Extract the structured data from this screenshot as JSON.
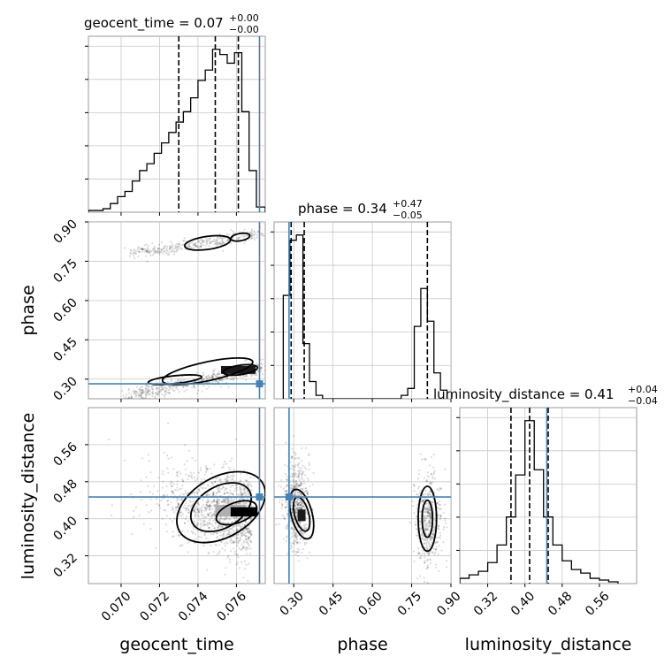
{
  "chart_data": {
    "type": "corner",
    "parameters": [
      "geocent_time",
      "phase",
      "luminosity_distance"
    ],
    "ranges": {
      "geocent_time": [
        0.0683,
        0.0775
      ],
      "phase": [
        0.225,
        0.9
      ],
      "luminosity_distance": [
        0.26,
        0.64
      ]
    },
    "truths": {
      "geocent_time": 0.0772,
      "phase": 0.282,
      "luminosity_distance": 0.447
    },
    "accent_color": "#4682b4",
    "ticks": {
      "geocent_time": [
        0.07,
        0.072,
        0.074,
        0.076
      ],
      "phase": [
        0.3,
        0.45,
        0.6,
        0.75,
        0.9
      ],
      "luminosity_distance": [
        0.32,
        0.4,
        0.48,
        0.56
      ]
    },
    "tick_labels": {
      "geocent_time": [
        "0.070",
        "0.072",
        "0.074",
        "0.076"
      ],
      "phase": [
        "0.30",
        "0.45",
        "0.60",
        "0.75",
        "0.90"
      ],
      "luminosity_distance": [
        "0.32",
        "0.40",
        "0.48",
        "0.56"
      ]
    },
    "titles": [
      {
        "parameter": "geocent_time",
        "value_text": "geocent_time = 0.07",
        "plus": "+0.00",
        "minus": "−0.00"
      },
      {
        "parameter": "phase",
        "value_text": "phase = 0.34",
        "plus": "+0.47",
        "minus": "−0.05"
      },
      {
        "parameter": "luminosity_distance",
        "value_text": "luminosity_distance = 0.41",
        "plus": "+0.04",
        "minus": "−0.04"
      }
    ],
    "quantiles": {
      "geocent_time": [
        0.073,
        0.0749,
        0.0761
      ],
      "phase": [
        0.29,
        0.34,
        0.81
      ],
      "luminosity_distance": [
        0.37,
        0.41,
        0.45
      ]
    },
    "histograms": {
      "geocent_time": {
        "edges": [
          0.0683,
          0.06868,
          0.06906,
          0.06944,
          0.06982,
          0.0702,
          0.07058,
          0.07096,
          0.07134,
          0.07172,
          0.0721,
          0.07248,
          0.07286,
          0.07324,
          0.07362,
          0.074,
          0.07438,
          0.07476,
          0.07514,
          0.07552,
          0.0759,
          0.07628,
          0.07666,
          0.07704,
          0.0775
        ],
        "values": [
          1,
          1,
          2,
          5,
          9,
          12,
          18,
          24,
          28,
          34,
          40,
          46,
          52,
          58,
          66,
          76,
          82,
          94,
          91,
          86,
          92,
          58,
          24,
          3
        ]
      },
      "phase": {
        "edges": [
          0.26,
          0.285,
          0.31,
          0.335,
          0.36,
          0.385,
          0.41,
          0.435,
          0.46,
          0.485,
          0.51,
          0.535,
          0.56,
          0.585,
          0.61,
          0.635,
          0.66,
          0.685,
          0.71,
          0.735,
          0.76,
          0.785,
          0.81,
          0.835,
          0.86,
          0.885
        ],
        "values": [
          60,
          92,
          95,
          32,
          10,
          2,
          0,
          0,
          0,
          0,
          0,
          0,
          0,
          0,
          0,
          0,
          0,
          0,
          2,
          6,
          42,
          64,
          45,
          15,
          5
        ]
      },
      "luminosity_distance": {
        "edges": [
          0.26,
          0.28,
          0.3,
          0.32,
          0.34,
          0.36,
          0.38,
          0.4,
          0.42,
          0.44,
          0.46,
          0.48,
          0.5,
          0.52,
          0.54,
          0.56,
          0.58,
          0.6
        ],
        "values": [
          3,
          5,
          7,
          12,
          22,
          38,
          62,
          93,
          65,
          38,
          22,
          13,
          8,
          6,
          3,
          2,
          1
        ]
      }
    },
    "density_modes": {
      "phase_vs_geocent_time": [
        [
          0.0745,
          0.82
        ],
        [
          0.0762,
          0.842
        ],
        [
          0.0762,
          0.335
        ],
        [
          0.0745,
          0.33
        ],
        [
          0.0728,
          0.298
        ]
      ],
      "luminosity_distance_vs_geocent_time": [
        [
          0.076,
          0.413
        ],
        [
          0.0752,
          0.425
        ]
      ],
      "luminosity_distance_vs_phase": [
        [
          0.33,
          0.41
        ],
        [
          0.81,
          0.4
        ]
      ]
    }
  }
}
